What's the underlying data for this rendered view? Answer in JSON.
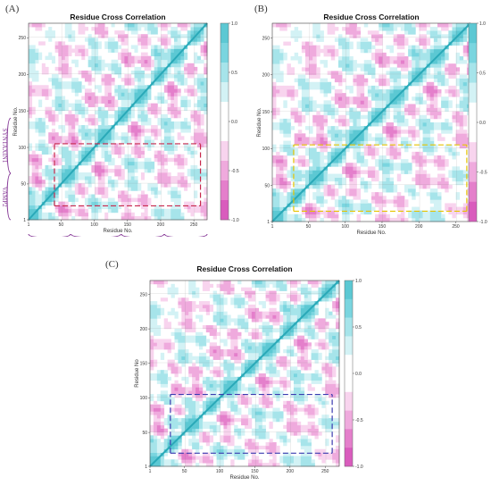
{
  "palette": {
    "positive": [
      "#d3f2f5",
      "#a6e4ea",
      "#7ad5df",
      "#5cc8d3"
    ],
    "negative": [
      "#f8d4ee",
      "#efaadd",
      "#e47fcb",
      "#d95cbd"
    ],
    "contour": "#6e6e6e",
    "segment": "#8a3f9a"
  },
  "chart_data": [
    {
      "panel": "(A)",
      "type": "heatmap",
      "title": "Residue Cross Correlation",
      "xlabel": "Residue No.",
      "ylabel": "Residue No.",
      "xlim": [
        1,
        270
      ],
      "ylim": [
        1,
        270
      ],
      "xticks": [
        "1",
        "50",
        "100",
        "150",
        "200",
        "250"
      ],
      "yticks": [
        "1",
        "50",
        "100",
        "150",
        "200",
        "250"
      ],
      "colorbar": {
        "range": [
          -1,
          1
        ],
        "ticks": [
          "1.0",
          "0.5",
          "0.0",
          "-0.5",
          "-1.0"
        ]
      },
      "x_segments": [
        {
          "label": "VAMP2",
          "start": 1,
          "end": 64
        },
        {
          "label": "SYNTAXIN1",
          "start": 65,
          "end": 140
        },
        {
          "label": "SNAP25",
          "start": 141,
          "end": 205
        },
        {
          "label": "SNAP25",
          "start": 206,
          "end": 270
        }
      ],
      "y_segments": [
        {
          "label": "VAMP2",
          "start": 1,
          "end": 64
        },
        {
          "label": "SYNTAXIN1",
          "start": 65,
          "end": 140
        }
      ],
      "highlight_color": "#c8284c",
      "highlights": [
        [
          40,
          20,
          260,
          20
        ],
        [
          40,
          20,
          40,
          105
        ],
        [
          40,
          105,
          260,
          105
        ],
        [
          260,
          20,
          260,
          105
        ]
      ]
    },
    {
      "panel": "(B)",
      "type": "heatmap",
      "title": "Residue Cross Correlation",
      "xlabel": "Residue No.",
      "ylabel": "Residue No.",
      "xlim": [
        1,
        270
      ],
      "ylim": [
        1,
        270
      ],
      "xticks": [
        "1",
        "50",
        "100",
        "150",
        "200",
        "250"
      ],
      "yticks": [
        "1",
        "50",
        "100",
        "150",
        "200",
        "250"
      ],
      "colorbar": {
        "range": [
          -1,
          1
        ],
        "ticks": [
          "1.0",
          "0.5",
          "0.0",
          "-0.5",
          "-1.0"
        ]
      },
      "highlight_color": "#e6c400",
      "highlights": [
        [
          30,
          15,
          265,
          15
        ],
        [
          30,
          15,
          30,
          105
        ],
        [
          30,
          105,
          265,
          105
        ],
        [
          265,
          15,
          265,
          105
        ]
      ]
    },
    {
      "panel": "(C)",
      "type": "heatmap",
      "title": "Residue Cross Correlation",
      "xlabel": "Residue No.",
      "ylabel": "Residue No",
      "xlim": [
        1,
        270
      ],
      "ylim": [
        1,
        270
      ],
      "xticks": [
        "1",
        "50",
        "100",
        "150",
        "200",
        "250"
      ],
      "yticks": [
        "1",
        "50",
        "100",
        "150",
        "200",
        "250"
      ],
      "colorbar": {
        "range": [
          -1,
          1
        ],
        "ticks": [
          "1.0",
          "0.5",
          "0.0",
          "-0.5",
          "-1.0"
        ]
      },
      "highlight_color": "#3b3bb0",
      "highlights": [
        [
          30,
          20,
          260,
          20
        ],
        [
          30,
          20,
          30,
          105
        ],
        [
          30,
          105,
          260,
          105
        ],
        [
          260,
          20,
          260,
          105
        ]
      ]
    }
  ]
}
